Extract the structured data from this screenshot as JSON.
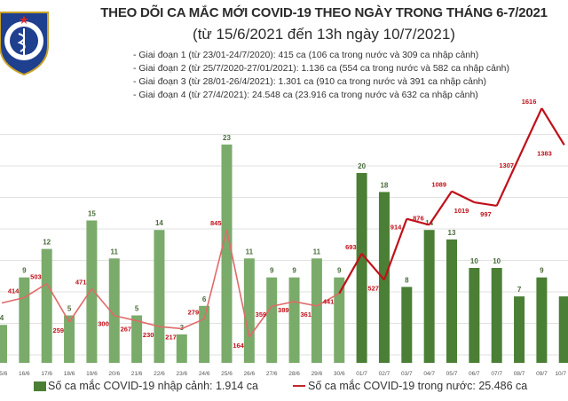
{
  "header": {
    "title": "THEO DÕI CA MẮC MỚI COVID-19 THEO NGÀY TRONG THÁNG 6-7/2021",
    "subtitle": "(từ 15/6/2021 đến 13h ngày 10/7/2021)",
    "logo_text": "BỘ Y TẾ",
    "notes": [
      "- Giai đoạn 1 (từ 23/01-24/7/2020): 415 ca (106 ca trong nước và 309 ca nhập cảnh)",
      "- Giai đoạn 2 (từ 25/7/2020-27/01/2021): 1.136 ca (554 ca trong nước và 582 ca nhập cảnh)",
      "- Giai đoạn 3 (từ 28/01-26/4/2021): 1.301 ca (910 ca trong nước và 391 ca nhập cảnh)",
      "- Giai đoạn 4 (từ 27/4/2021): 24.548 ca (23.916 ca trong nước và 632 ca nhập cảnh)"
    ]
  },
  "legend": {
    "bar": "Số ca mắc COVID-19 nhập cảnh: 1.914 ca",
    "line": "Số ca mắc COVID-19 trong nước: 25.486 ca"
  },
  "colors": {
    "bar_june": "#7aab6a",
    "bar_july": "#4a7f35",
    "line_june": "#e06a6a",
    "line_july": "#c0101a",
    "grid": "#e2e2e2"
  },
  "chart_data": {
    "type": "bar+line",
    "categories": [
      "15/6",
      "16/6",
      "17/6",
      "18/6",
      "19/6",
      "20/6",
      "21/6",
      "22/6",
      "23/6",
      "24/6",
      "25/6",
      "26/6",
      "27/6",
      "28/6",
      "29/6",
      "30/6",
      "01/7",
      "02/7",
      "03/7",
      "04/7",
      "05/7",
      "06/7",
      "07/7",
      "08/7",
      "09/7",
      "10/7"
    ],
    "series": [
      {
        "name": "Số ca mắc COVID-19 nhập cảnh",
        "type": "bar",
        "values": [
          4,
          9,
          12,
          5,
          15,
          11,
          5,
          14,
          3,
          6,
          23,
          11,
          9,
          9,
          11,
          9,
          20,
          18,
          8,
          14,
          13,
          10,
          10,
          7,
          9,
          7
        ]
      },
      {
        "name": "Số ca mắc COVID-19 trong nước",
        "type": "line",
        "values": [
          380,
          414,
          503,
          259,
          471,
          300,
          267,
          230,
          217,
          279,
          845,
          164,
          359,
          389,
          361,
          441,
          693,
          527,
          914,
          876,
          1089,
          1019,
          997,
          1307,
          1616,
          1383
        ]
      }
    ],
    "labels_shown_bar": [
      true,
      true,
      true,
      true,
      true,
      true,
      true,
      true,
      true,
      true,
      true,
      true,
      true,
      true,
      true,
      true,
      true,
      true,
      true,
      true,
      true,
      true,
      true,
      true,
      true,
      false
    ],
    "labels_shown_line": [
      false,
      true,
      true,
      true,
      true,
      true,
      true,
      true,
      true,
      true,
      true,
      true,
      true,
      true,
      true,
      true,
      true,
      true,
      true,
      true,
      true,
      true,
      true,
      true,
      true,
      true
    ],
    "grid": true
  }
}
